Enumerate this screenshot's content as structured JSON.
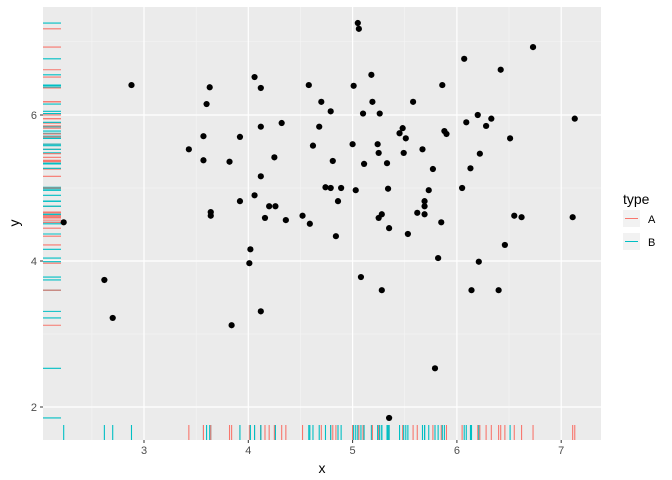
{
  "chart_data": {
    "type": "scatter",
    "title": "",
    "xlabel": "x",
    "ylabel": "y",
    "xlim": [
      2.03,
      7.4
    ],
    "ylim": [
      1.55,
      7.4
    ],
    "x_ticks": [
      3,
      4,
      5,
      6,
      7
    ],
    "y_ticks": [
      2,
      4,
      6
    ],
    "grid": true,
    "rug": {
      "sides": "bl",
      "mapped_to": "type"
    },
    "legend": {
      "title": "type",
      "position": "right",
      "entries": [
        {
          "label": "A",
          "color": "#F8766D"
        },
        {
          "label": "B",
          "color": "#00BFC4"
        }
      ]
    },
    "points": [
      {
        "x": 2.23,
        "y": 4.53,
        "type": "B"
      },
      {
        "x": 2.62,
        "y": 3.74,
        "type": "B"
      },
      {
        "x": 2.7,
        "y": 3.22,
        "type": "B"
      },
      {
        "x": 2.88,
        "y": 6.41,
        "type": "B"
      },
      {
        "x": 3.43,
        "y": 5.53,
        "type": "A"
      },
      {
        "x": 3.57,
        "y": 5.71,
        "type": "B"
      },
      {
        "x": 3.57,
        "y": 5.38,
        "type": "A"
      },
      {
        "x": 3.6,
        "y": 6.15,
        "type": "B"
      },
      {
        "x": 3.63,
        "y": 6.38,
        "type": "B"
      },
      {
        "x": 3.64,
        "y": 4.62,
        "type": "B"
      },
      {
        "x": 3.64,
        "y": 4.67,
        "type": "A"
      },
      {
        "x": 3.82,
        "y": 5.36,
        "type": "A"
      },
      {
        "x": 3.84,
        "y": 3.12,
        "type": "A"
      },
      {
        "x": 3.92,
        "y": 5.7,
        "type": "A"
      },
      {
        "x": 3.92,
        "y": 4.82,
        "type": "B"
      },
      {
        "x": 4.01,
        "y": 3.97,
        "type": "A"
      },
      {
        "x": 4.02,
        "y": 4.16,
        "type": "B"
      },
      {
        "x": 4.06,
        "y": 6.52,
        "type": "A"
      },
      {
        "x": 4.06,
        "y": 4.9,
        "type": "B"
      },
      {
        "x": 4.12,
        "y": 6.37,
        "type": "A"
      },
      {
        "x": 4.12,
        "y": 5.84,
        "type": "B"
      },
      {
        "x": 4.12,
        "y": 5.16,
        "type": "A"
      },
      {
        "x": 4.12,
        "y": 3.31,
        "type": "B"
      },
      {
        "x": 4.16,
        "y": 4.59,
        "type": "A"
      },
      {
        "x": 4.2,
        "y": 4.75,
        "type": "A"
      },
      {
        "x": 4.25,
        "y": 5.42,
        "type": "A"
      },
      {
        "x": 4.26,
        "y": 4.75,
        "type": "B"
      },
      {
        "x": 4.32,
        "y": 5.89,
        "type": "A"
      },
      {
        "x": 4.36,
        "y": 4.56,
        "type": "A"
      },
      {
        "x": 4.52,
        "y": 4.62,
        "type": "A"
      },
      {
        "x": 4.58,
        "y": 6.41,
        "type": "B"
      },
      {
        "x": 4.59,
        "y": 4.51,
        "type": "B"
      },
      {
        "x": 4.62,
        "y": 5.58,
        "type": "B"
      },
      {
        "x": 4.68,
        "y": 5.84,
        "type": "B"
      },
      {
        "x": 4.7,
        "y": 6.18,
        "type": "A"
      },
      {
        "x": 4.74,
        "y": 5.01,
        "type": "B"
      },
      {
        "x": 4.79,
        "y": 5.0,
        "type": "A"
      },
      {
        "x": 4.79,
        "y": 6.05,
        "type": "B"
      },
      {
        "x": 4.81,
        "y": 5.37,
        "type": "A"
      },
      {
        "x": 4.84,
        "y": 4.34,
        "type": "A"
      },
      {
        "x": 4.86,
        "y": 4.82,
        "type": "B"
      },
      {
        "x": 4.89,
        "y": 5.0,
        "type": "B"
      },
      {
        "x": 5.0,
        "y": 5.6,
        "type": "A"
      },
      {
        "x": 5.01,
        "y": 6.4,
        "type": "B"
      },
      {
        "x": 5.03,
        "y": 4.97,
        "type": "B"
      },
      {
        "x": 5.05,
        "y": 7.26,
        "type": "B"
      },
      {
        "x": 5.06,
        "y": 7.18,
        "type": "A"
      },
      {
        "x": 5.08,
        "y": 3.78,
        "type": "B"
      },
      {
        "x": 5.1,
        "y": 6.02,
        "type": "A"
      },
      {
        "x": 5.11,
        "y": 5.33,
        "type": "B"
      },
      {
        "x": 5.18,
        "y": 6.55,
        "type": "B"
      },
      {
        "x": 5.19,
        "y": 6.18,
        "type": "A"
      },
      {
        "x": 5.24,
        "y": 5.6,
        "type": "B"
      },
      {
        "x": 5.25,
        "y": 5.48,
        "type": "B"
      },
      {
        "x": 5.25,
        "y": 4.59,
        "type": "A"
      },
      {
        "x": 5.26,
        "y": 6.02,
        "type": "B"
      },
      {
        "x": 5.28,
        "y": 4.64,
        "type": "B"
      },
      {
        "x": 5.28,
        "y": 3.6,
        "type": "B"
      },
      {
        "x": 5.33,
        "y": 5.34,
        "type": "B"
      },
      {
        "x": 5.34,
        "y": 4.99,
        "type": "B"
      },
      {
        "x": 5.35,
        "y": 4.45,
        "type": "A"
      },
      {
        "x": 5.35,
        "y": 1.85,
        "type": "B"
      },
      {
        "x": 5.45,
        "y": 5.75,
        "type": "B"
      },
      {
        "x": 5.48,
        "y": 5.82,
        "type": "A"
      },
      {
        "x": 5.49,
        "y": 5.48,
        "type": "B"
      },
      {
        "x": 5.51,
        "y": 5.68,
        "type": "B"
      },
      {
        "x": 5.53,
        "y": 4.37,
        "type": "B"
      },
      {
        "x": 5.58,
        "y": 6.18,
        "type": "A"
      },
      {
        "x": 5.62,
        "y": 4.66,
        "type": "A"
      },
      {
        "x": 5.67,
        "y": 5.53,
        "type": "B"
      },
      {
        "x": 5.69,
        "y": 4.82,
        "type": "B"
      },
      {
        "x": 5.69,
        "y": 4.75,
        "type": "B"
      },
      {
        "x": 5.69,
        "y": 4.64,
        "type": "B"
      },
      {
        "x": 5.73,
        "y": 4.97,
        "type": "B"
      },
      {
        "x": 5.77,
        "y": 5.26,
        "type": "A"
      },
      {
        "x": 5.79,
        "y": 2.53,
        "type": "B"
      },
      {
        "x": 5.82,
        "y": 4.04,
        "type": "B"
      },
      {
        "x": 5.85,
        "y": 4.53,
        "type": "A"
      },
      {
        "x": 5.86,
        "y": 6.41,
        "type": "B"
      },
      {
        "x": 5.88,
        "y": 5.78,
        "type": "B"
      },
      {
        "x": 5.9,
        "y": 5.74,
        "type": "A"
      },
      {
        "x": 6.05,
        "y": 5.0,
        "type": "A"
      },
      {
        "x": 6.07,
        "y": 6.77,
        "type": "B"
      },
      {
        "x": 6.09,
        "y": 5.9,
        "type": "B"
      },
      {
        "x": 6.13,
        "y": 5.27,
        "type": "B"
      },
      {
        "x": 6.14,
        "y": 3.6,
        "type": "B"
      },
      {
        "x": 6.2,
        "y": 6.0,
        "type": "A"
      },
      {
        "x": 6.21,
        "y": 3.99,
        "type": "B"
      },
      {
        "x": 6.22,
        "y": 5.47,
        "type": "A"
      },
      {
        "x": 6.28,
        "y": 5.85,
        "type": "A"
      },
      {
        "x": 6.33,
        "y": 5.95,
        "type": "A"
      },
      {
        "x": 6.4,
        "y": 3.6,
        "type": "A"
      },
      {
        "x": 6.42,
        "y": 6.62,
        "type": "A"
      },
      {
        "x": 6.46,
        "y": 4.22,
        "type": "A"
      },
      {
        "x": 6.51,
        "y": 5.68,
        "type": "B"
      },
      {
        "x": 6.55,
        "y": 4.62,
        "type": "A"
      },
      {
        "x": 6.62,
        "y": 4.6,
        "type": "A"
      },
      {
        "x": 6.73,
        "y": 6.93,
        "type": "A"
      },
      {
        "x": 7.11,
        "y": 4.6,
        "type": "A"
      },
      {
        "x": 7.13,
        "y": 5.95,
        "type": "A"
      }
    ]
  },
  "labels": {
    "x_axis": "x",
    "y_axis": "y",
    "legend_title": "type",
    "legend_a": "A",
    "legend_b": "B",
    "x_tick_3": "3",
    "x_tick_4": "4",
    "x_tick_5": "5",
    "x_tick_6": "6",
    "x_tick_7": "7",
    "y_tick_2": "2",
    "y_tick_4": "4",
    "y_tick_6": "6"
  }
}
